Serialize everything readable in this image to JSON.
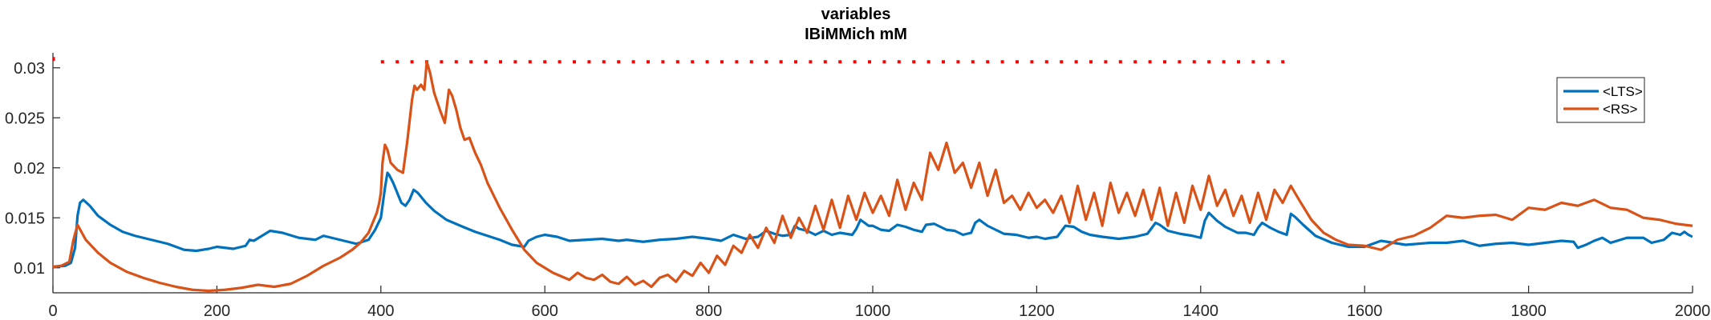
{
  "chart_data": {
    "type": "line",
    "title": "variables",
    "subtitle": "IBiMMich mM",
    "xlabel": "",
    "ylabel": "",
    "xlim": [
      0,
      2000
    ],
    "ylim": [
      0.0075,
      0.0315
    ],
    "xticks": [
      0,
      200,
      400,
      600,
      800,
      1000,
      1200,
      1400,
      1600,
      1800,
      2000
    ],
    "yticks": [
      0.01,
      0.015,
      0.02,
      0.025,
      0.03
    ],
    "ytick_labels": [
      "0.01",
      "0.015",
      "0.02",
      "0.025",
      "0.03"
    ],
    "grid": false,
    "legend_position": "top-right",
    "dotted_marker": {
      "y": 0.0306,
      "x_start": 400,
      "x_end": 1510,
      "color": "#ff0000"
    },
    "series": [
      {
        "name": "<LTS>",
        "color": "#0072bd",
        "x": [
          0,
          15,
          22,
          27,
          30,
          33,
          37,
          45,
          55,
          70,
          85,
          100,
          120,
          140,
          160,
          175,
          190,
          200,
          210,
          220,
          235,
          240,
          245,
          255,
          265,
          280,
          300,
          320,
          330,
          340,
          355,
          370,
          385,
          393,
          400,
          405,
          408,
          410,
          415,
          420,
          425,
          430,
          435,
          440,
          445,
          455,
          465,
          480,
          500,
          515,
          530,
          545,
          560,
          575,
          580,
          590,
          600,
          615,
          630,
          650,
          670,
          690,
          700,
          720,
          740,
          760,
          780,
          800,
          815,
          830,
          845,
          860,
          870,
          880,
          890,
          900,
          905,
          910,
          920,
          930,
          940,
          950,
          960,
          975,
          980,
          985,
          995,
          1000,
          1010,
          1020,
          1030,
          1040,
          1050,
          1060,
          1065,
          1075,
          1090,
          1100,
          1110,
          1120,
          1125,
          1130,
          1140,
          1150,
          1160,
          1175,
          1190,
          1200,
          1210,
          1225,
          1235,
          1245,
          1255,
          1265,
          1280,
          1300,
          1320,
          1335,
          1345,
          1350,
          1360,
          1375,
          1390,
          1400,
          1405,
          1410,
          1420,
          1430,
          1445,
          1455,
          1465,
          1470,
          1475,
          1485,
          1495,
          1505,
          1510,
          1515,
          1525,
          1540,
          1560,
          1580,
          1600,
          1620,
          1650,
          1680,
          1700,
          1720,
          1740,
          1760,
          1780,
          1800,
          1820,
          1840,
          1855,
          1860,
          1870,
          1880,
          1890,
          1900,
          1920,
          1940,
          1950,
          1965,
          1975,
          1985,
          1990,
          1995,
          2000
        ],
        "values": [
          0.0101,
          0.0102,
          0.0105,
          0.012,
          0.0152,
          0.0165,
          0.0168,
          0.0162,
          0.0152,
          0.0143,
          0.0136,
          0.0132,
          0.0128,
          0.0124,
          0.0118,
          0.0117,
          0.0119,
          0.0121,
          0.012,
          0.0119,
          0.0122,
          0.0128,
          0.0127,
          0.0132,
          0.0137,
          0.0135,
          0.013,
          0.0128,
          0.0132,
          0.013,
          0.0127,
          0.0124,
          0.0128,
          0.0138,
          0.015,
          0.018,
          0.0195,
          0.0193,
          0.0185,
          0.0175,
          0.0165,
          0.0162,
          0.0168,
          0.0178,
          0.0175,
          0.0165,
          0.0157,
          0.0148,
          0.0141,
          0.0136,
          0.0132,
          0.0128,
          0.0123,
          0.0121,
          0.0127,
          0.0131,
          0.0133,
          0.0131,
          0.0127,
          0.0128,
          0.0129,
          0.0127,
          0.0128,
          0.0126,
          0.0128,
          0.0129,
          0.0131,
          0.0129,
          0.0127,
          0.0133,
          0.0129,
          0.0131,
          0.0137,
          0.0134,
          0.0132,
          0.0133,
          0.0142,
          0.0139,
          0.0137,
          0.0133,
          0.0137,
          0.0133,
          0.0135,
          0.0133,
          0.0139,
          0.0148,
          0.0142,
          0.0142,
          0.0138,
          0.0137,
          0.0143,
          0.0141,
          0.0138,
          0.0136,
          0.0143,
          0.0144,
          0.0138,
          0.0137,
          0.0133,
          0.0135,
          0.0145,
          0.0148,
          0.0142,
          0.0138,
          0.0134,
          0.0133,
          0.013,
          0.0131,
          0.0129,
          0.0131,
          0.0142,
          0.0141,
          0.0136,
          0.0133,
          0.0131,
          0.0129,
          0.0131,
          0.0134,
          0.0145,
          0.0143,
          0.0137,
          0.0134,
          0.0132,
          0.013,
          0.0147,
          0.0155,
          0.0147,
          0.0141,
          0.0135,
          0.0135,
          0.0133,
          0.014,
          0.0145,
          0.014,
          0.0136,
          0.0133,
          0.0154,
          0.0151,
          0.0143,
          0.0132,
          0.0125,
          0.0121,
          0.0121,
          0.0127,
          0.0123,
          0.0125,
          0.0125,
          0.0127,
          0.0122,
          0.0124,
          0.0125,
          0.0123,
          0.0125,
          0.0127,
          0.0126,
          0.012,
          0.0123,
          0.0127,
          0.013,
          0.0125,
          0.013,
          0.013,
          0.0125,
          0.0128,
          0.0135,
          0.0133,
          0.0136,
          0.0133,
          0.0131
        ]
      },
      {
        "name": "<RS>",
        "color": "#d95319",
        "x": [
          0,
          10,
          20,
          25,
          30,
          40,
          55,
          70,
          90,
          110,
          130,
          150,
          170,
          190,
          210,
          230,
          250,
          270,
          290,
          310,
          330,
          350,
          365,
          375,
          385,
          395,
          398,
          400,
          402,
          405,
          408,
          412,
          420,
          427,
          432,
          438,
          441,
          444,
          449,
          453,
          456,
          460,
          465,
          472,
          478,
          483,
          487,
          492,
          497,
          502,
          508,
          515,
          522,
          530,
          545,
          560,
          575,
          590,
          610,
          630,
          640,
          650,
          660,
          670,
          680,
          690,
          700,
          710,
          720,
          730,
          740,
          750,
          760,
          770,
          780,
          790,
          800,
          810,
          820,
          830,
          840,
          850,
          860,
          870,
          880,
          890,
          900,
          910,
          920,
          930,
          940,
          950,
          960,
          970,
          980,
          990,
          1000,
          1010,
          1020,
          1030,
          1040,
          1050,
          1060,
          1070,
          1080,
          1090,
          1100,
          1110,
          1120,
          1130,
          1140,
          1150,
          1160,
          1170,
          1180,
          1190,
          1200,
          1210,
          1220,
          1230,
          1240,
          1250,
          1260,
          1270,
          1280,
          1290,
          1300,
          1310,
          1320,
          1330,
          1340,
          1350,
          1360,
          1370,
          1380,
          1390,
          1400,
          1410,
          1420,
          1430,
          1440,
          1450,
          1460,
          1470,
          1480,
          1490,
          1500,
          1510,
          1520,
          1535,
          1550,
          1565,
          1580,
          1600,
          1620,
          1640,
          1660,
          1680,
          1700,
          1720,
          1740,
          1760,
          1780,
          1800,
          1820,
          1840,
          1860,
          1880,
          1900,
          1920,
          1940,
          1960,
          1980,
          2000
        ],
        "values": [
          0.0101,
          0.0102,
          0.0106,
          0.0128,
          0.0143,
          0.0128,
          0.0115,
          0.0105,
          0.0096,
          0.009,
          0.0085,
          0.0081,
          0.0078,
          0.0077,
          0.0078,
          0.008,
          0.0083,
          0.0081,
          0.0084,
          0.0092,
          0.0102,
          0.011,
          0.0118,
          0.0125,
          0.0135,
          0.0155,
          0.0165,
          0.0175,
          0.0205,
          0.0223,
          0.0218,
          0.0205,
          0.0198,
          0.0195,
          0.0225,
          0.0268,
          0.0282,
          0.0278,
          0.0283,
          0.0278,
          0.0306,
          0.0295,
          0.0275,
          0.0258,
          0.0245,
          0.0278,
          0.0272,
          0.0258,
          0.024,
          0.0228,
          0.023,
          0.0215,
          0.0203,
          0.0185,
          0.016,
          0.0138,
          0.0118,
          0.0105,
          0.0095,
          0.0088,
          0.0095,
          0.009,
          0.0088,
          0.0093,
          0.0086,
          0.0084,
          0.0091,
          0.0083,
          0.0087,
          0.0081,
          0.009,
          0.0093,
          0.0086,
          0.0097,
          0.0092,
          0.0105,
          0.0095,
          0.0112,
          0.0103,
          0.0122,
          0.0115,
          0.0133,
          0.012,
          0.014,
          0.0125,
          0.0152,
          0.013,
          0.015,
          0.0135,
          0.0162,
          0.0138,
          0.0168,
          0.014,
          0.0172,
          0.0148,
          0.0175,
          0.0155,
          0.0172,
          0.0152,
          0.0188,
          0.0158,
          0.0185,
          0.0168,
          0.0215,
          0.0198,
          0.0225,
          0.0195,
          0.0205,
          0.018,
          0.0205,
          0.0172,
          0.0198,
          0.0165,
          0.0172,
          0.0158,
          0.0175,
          0.016,
          0.0168,
          0.0155,
          0.0172,
          0.0145,
          0.0182,
          0.0148,
          0.0175,
          0.0142,
          0.0185,
          0.0155,
          0.0175,
          0.0152,
          0.0178,
          0.0148,
          0.018,
          0.0142,
          0.0175,
          0.0145,
          0.0182,
          0.0158,
          0.0192,
          0.0162,
          0.0178,
          0.0152,
          0.0172,
          0.0145,
          0.0175,
          0.0148,
          0.0178,
          0.0165,
          0.0182,
          0.0168,
          0.0148,
          0.0135,
          0.0128,
          0.0123,
          0.0122,
          0.0118,
          0.0128,
          0.0132,
          0.014,
          0.0152,
          0.015,
          0.0152,
          0.0153,
          0.0148,
          0.016,
          0.0158,
          0.0165,
          0.0162,
          0.0168,
          0.016,
          0.0158,
          0.015,
          0.0148,
          0.0144,
          0.0142
        ]
      }
    ]
  }
}
